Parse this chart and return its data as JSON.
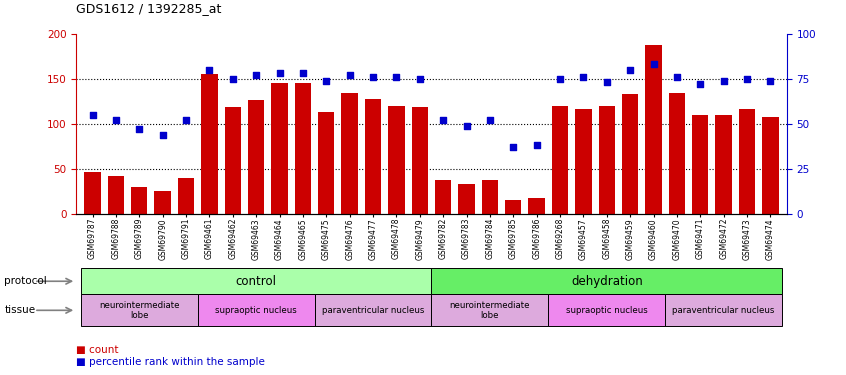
{
  "title": "GDS1612 / 1392285_at",
  "samples": [
    "GSM69787",
    "GSM69788",
    "GSM69789",
    "GSM69790",
    "GSM69791",
    "GSM69461",
    "GSM69462",
    "GSM69463",
    "GSM69464",
    "GSM69465",
    "GSM69475",
    "GSM69476",
    "GSM69477",
    "GSM69478",
    "GSM69479",
    "GSM69782",
    "GSM69783",
    "GSM69784",
    "GSM69785",
    "GSM69786",
    "GSM69268",
    "GSM69457",
    "GSM69458",
    "GSM69459",
    "GSM69460",
    "GSM69470",
    "GSM69471",
    "GSM69472",
    "GSM69473",
    "GSM69474"
  ],
  "counts": [
    46,
    42,
    30,
    25,
    40,
    155,
    119,
    126,
    145,
    145,
    113,
    134,
    128,
    120,
    119,
    38,
    33,
    38,
    15,
    17,
    120,
    116,
    120,
    133,
    187,
    134,
    110,
    110,
    116,
    108
  ],
  "percentile_ranks": [
    55,
    52,
    47,
    44,
    52,
    80,
    75,
    77,
    78,
    78,
    74,
    77,
    76,
    76,
    75,
    52,
    49,
    52,
    37,
    38,
    75,
    76,
    73,
    80,
    83,
    76,
    72,
    74,
    75,
    74
  ],
  "ylim_left": [
    0,
    200
  ],
  "ylim_right": [
    0,
    100
  ],
  "yticks_left": [
    0,
    50,
    100,
    150,
    200
  ],
  "yticks_right": [
    0,
    25,
    50,
    75,
    100
  ],
  "bar_color": "#cc0000",
  "dot_color": "#0000cc",
  "background_color": "#ffffff",
  "protocol_groups": [
    {
      "label": "control",
      "start": 0,
      "end": 14,
      "color": "#aaffaa"
    },
    {
      "label": "dehydration",
      "start": 15,
      "end": 29,
      "color": "#66ee66"
    }
  ],
  "tissue_defs": [
    {
      "label": "neurointermediate\nlobe",
      "start": 0,
      "end": 4,
      "color": "#ddaadd"
    },
    {
      "label": "supraoptic nucleus",
      "start": 5,
      "end": 9,
      "color": "#ee88ee"
    },
    {
      "label": "paraventricular nucleus",
      "start": 10,
      "end": 14,
      "color": "#ddaadd"
    },
    {
      "label": "neurointermediate\nlobe",
      "start": 15,
      "end": 19,
      "color": "#ddaadd"
    },
    {
      "label": "supraoptic nucleus",
      "start": 20,
      "end": 24,
      "color": "#ee88ee"
    },
    {
      "label": "paraventricular nucleus",
      "start": 25,
      "end": 29,
      "color": "#ddaadd"
    }
  ]
}
